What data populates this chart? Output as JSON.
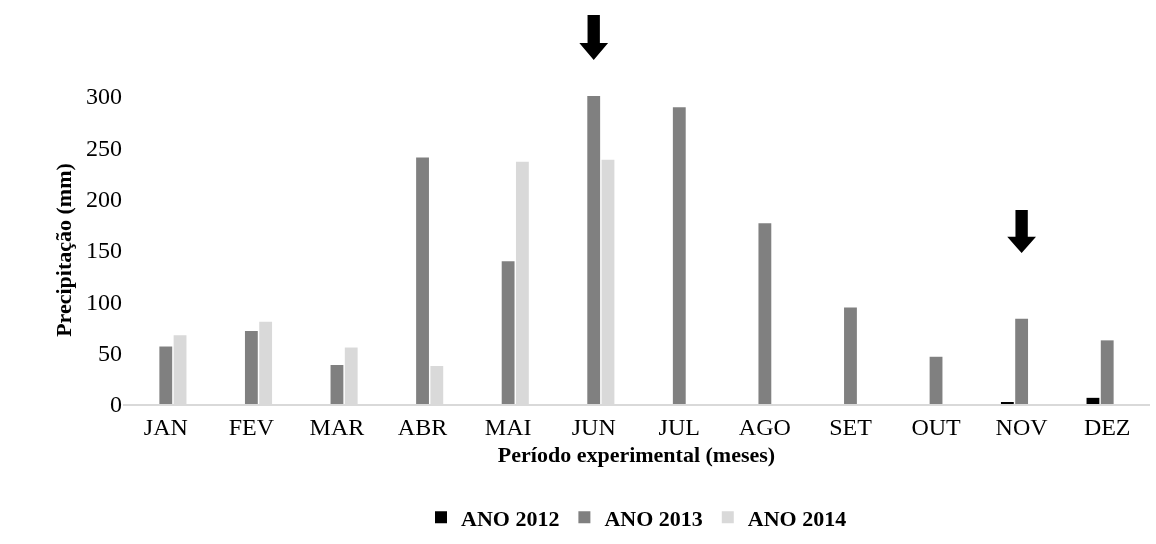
{
  "chart_data": {
    "type": "bar",
    "ylabel": "Precipitação (mm)",
    "xlabel": "Período experimental (meses)",
    "categories": [
      "JAN",
      "FEV",
      "MAR",
      "ABR",
      "MAI",
      "JUN",
      "JUL",
      "AGO",
      "SET",
      "OUT",
      "NOV",
      "DEZ"
    ],
    "series": [
      {
        "name": "ANO 2012",
        "color": "#000000",
        "values": [
          null,
          null,
          null,
          null,
          null,
          null,
          null,
          null,
          null,
          null,
          1,
          6
        ]
      },
      {
        "name": "ANO 2013",
        "color": "#808080",
        "values": [
          56,
          71,
          38,
          240,
          139,
          300,
          289,
          176,
          94,
          46,
          83,
          62
        ]
      },
      {
        "name": "ANO 2014",
        "color": "#d9d9d9",
        "values": [
          67,
          80,
          55,
          37,
          236,
          238,
          null,
          null,
          null,
          null,
          null,
          null
        ]
      }
    ],
    "ylim": [
      0,
      300
    ],
    "yticks": [
      0,
      50,
      100,
      150,
      200,
      250,
      300
    ],
    "grid": false,
    "legend": "bottom"
  }
}
